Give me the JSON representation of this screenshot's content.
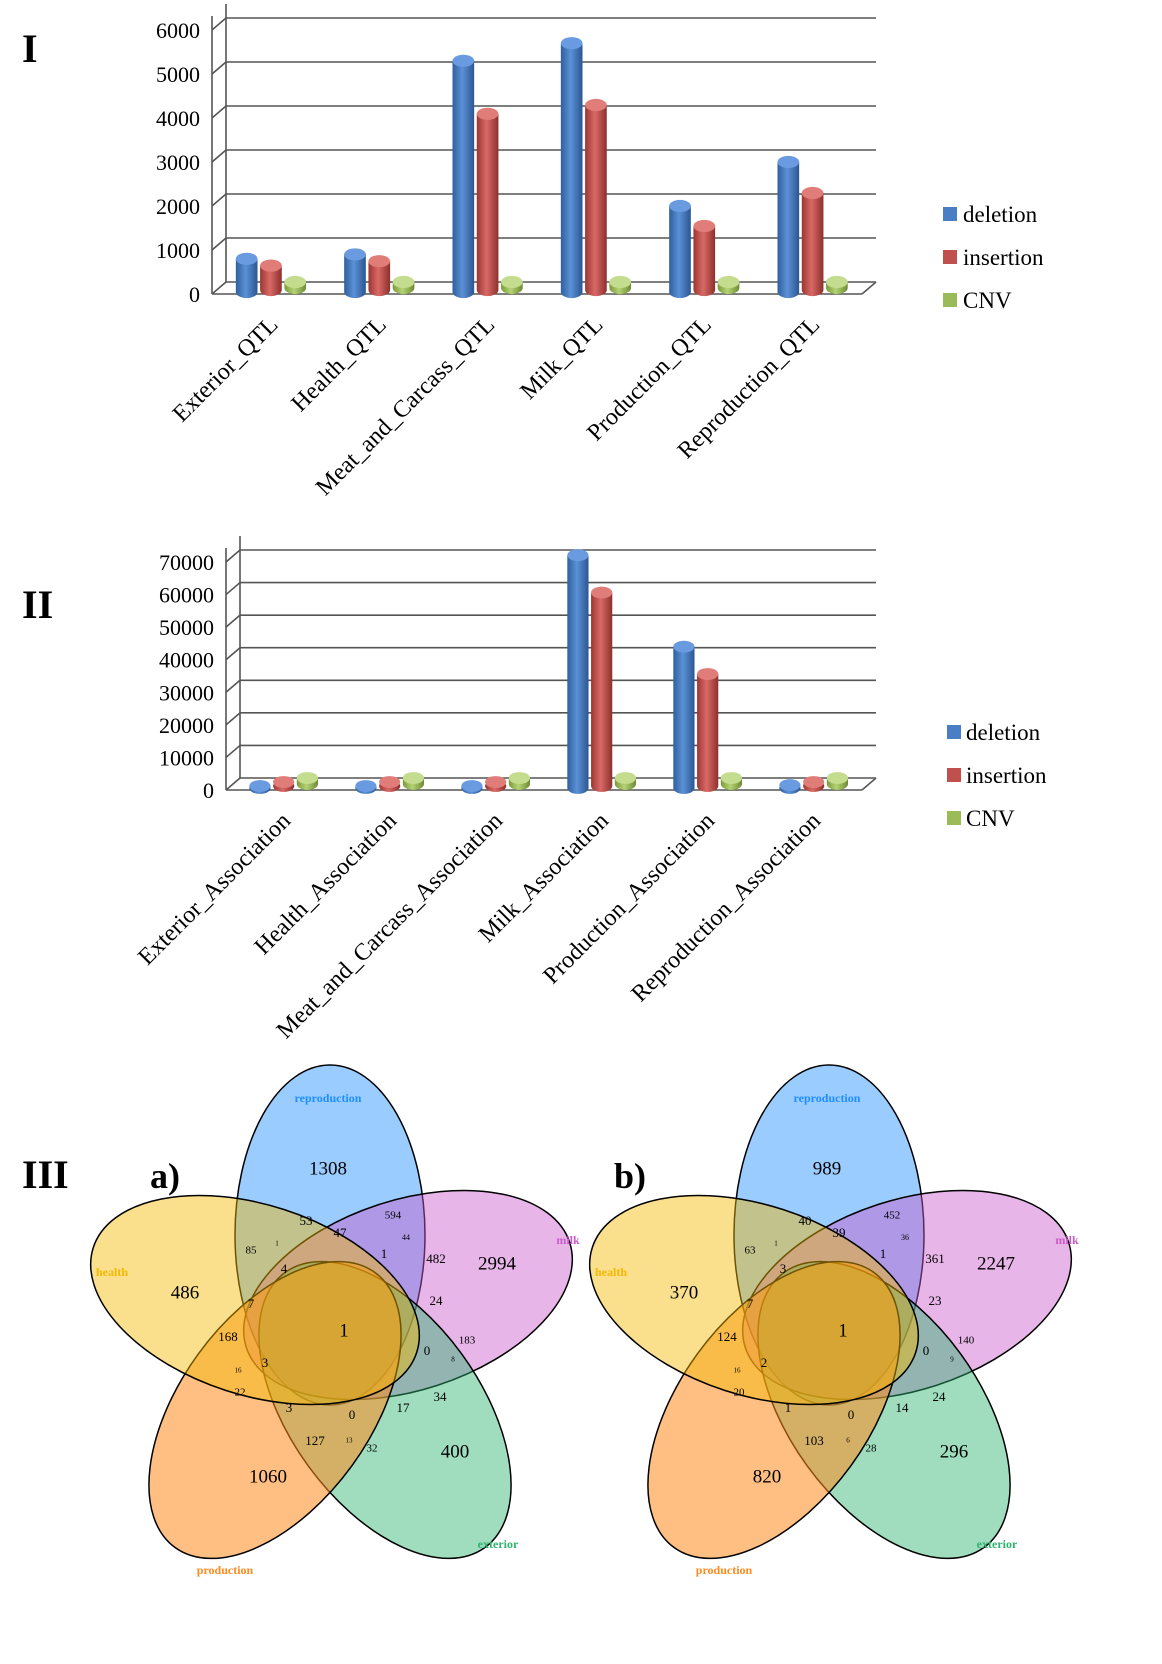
{
  "panels": {
    "chart1_label": "I",
    "chart2_label": "II",
    "venn_label": "III",
    "venn_a_label": "a)",
    "venn_b_label": "b)"
  },
  "colors": {
    "deletion": "#4a7ec4",
    "insertion": "#c0504d",
    "cnv": "#9bbb59",
    "reproduction": "#1f8fff",
    "milk": "#c95bc9",
    "exterior": "#2db36e",
    "production": "#ff8a1e",
    "health": "#f5b800"
  },
  "chart_data": [
    {
      "type": "bar",
      "title": "I",
      "categories": [
        "Exterior_QTL",
        "Health_QTL",
        "Meat_and_Carcass_QTL",
        "Milk_QTL",
        "Production_QTL",
        "Reproduction_QTL"
      ],
      "series": [
        {
          "name": "deletion",
          "values": [
            800,
            900,
            5300,
            5700,
            2000,
            3000
          ]
        },
        {
          "name": "insertion",
          "values": [
            600,
            700,
            4050,
            4250,
            1500,
            2250
          ]
        },
        {
          "name": "CNV",
          "values": [
            15,
            20,
            90,
            110,
            20,
            60
          ]
        }
      ],
      "ylim": [
        0,
        6000
      ],
      "yticks": [
        "0",
        "1000",
        "2000",
        "3000",
        "4000",
        "5000",
        "6000"
      ],
      "legend": "right"
    },
    {
      "type": "bar",
      "title": "II",
      "categories": [
        "Exterior_Association",
        "Health_Association",
        "Meat_and_Carcass_Association",
        "Milk_Association",
        "Production_Association",
        "Reproduction_Association"
      ],
      "series": [
        {
          "name": "deletion",
          "values": [
            300,
            300,
            600,
            74000,
            44000,
            1500
          ]
        },
        {
          "name": "insertion",
          "values": [
            200,
            200,
            500,
            60000,
            35000,
            1200
          ]
        },
        {
          "name": "CNV",
          "values": [
            50,
            50,
            100,
            900,
            500,
            150
          ]
        }
      ],
      "ylim": [
        0,
        70000
      ],
      "yticks": [
        "0",
        "10000",
        "20000",
        "30000",
        "40000",
        "50000",
        "60000",
        "70000"
      ],
      "legend": "right"
    }
  ],
  "venn": {
    "set_labels": {
      "reproduction": "reproduction",
      "milk": "milk",
      "exterior": "exterior",
      "production": "production",
      "health": "health"
    },
    "a": {
      "reproduction_only": "1308",
      "milk_only": "2994",
      "exterior_only": "400",
      "production_only": "1060",
      "health_only": "486",
      "rep_milk": "594",
      "rep_milk_health": "44",
      "rep_milk_ext": "47",
      "rep_health": "85",
      "rep_ext": "53",
      "rep_ext_health": "1",
      "rep_ext_milk_health": "4",
      "rep_milk_ext_prod": "1",
      "milk_ext": "482",
      "milk_ext_prod": "24",
      "milk_prod": "183",
      "milk_prod_health": "0",
      "milk_ext_prod_health": "0",
      "center": "1",
      "ext_prod": "34",
      "ext_prod_milk": "17",
      "ext_health": "32",
      "ext_health_prod": "13",
      "prod_health": "127",
      "prod_health_rep": "3",
      "prod_rep": "22",
      "prod_rep_milk": "16",
      "health_milk": "168",
      "health_rep_milk": "7",
      "health_prod_rep_milk": "3",
      "prod_ext_health_center": "0",
      "milk_prod_small": "8"
    },
    "b": {
      "reproduction_only": "989",
      "milk_only": "2247",
      "exterior_only": "296",
      "production_only": "820",
      "health_only": "370",
      "rep_milk": "452",
      "rep_milk_health": "36",
      "rep_milk_ext": "39",
      "rep_health": "63",
      "rep_ext": "40",
      "rep_ext_health": "1",
      "rep_ext_milk_health": "3",
      "rep_milk_ext_prod": "1",
      "milk_ext": "361",
      "milk_ext_prod": "23",
      "milk_prod": "140",
      "milk_prod_health": "0",
      "milk_ext_prod_health": "0",
      "center": "1",
      "ext_prod": "24",
      "ext_prod_milk": "14",
      "ext_health": "28",
      "ext_health_prod": "6",
      "prod_health": "103",
      "prod_health_rep": "1",
      "prod_rep": "20",
      "prod_rep_milk": "16",
      "health_milk": "124",
      "health_rep_milk": "7",
      "health_prod_rep_milk": "2",
      "prod_ext_health_center": "0",
      "milk_prod_small": "9"
    }
  }
}
